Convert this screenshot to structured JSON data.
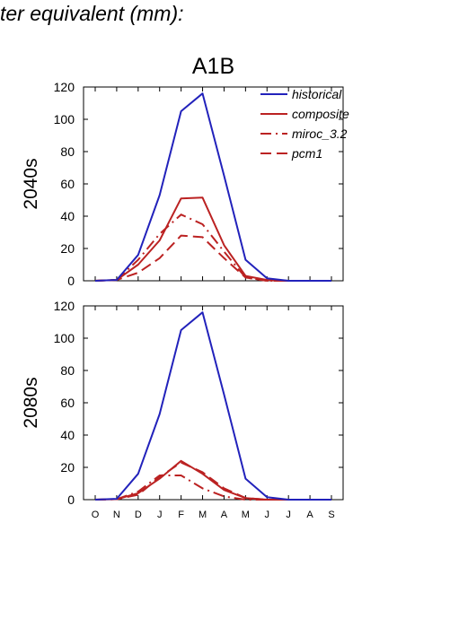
{
  "page": {
    "title": "ter equivalent (mm):"
  },
  "chart_data": [
    {
      "type": "line",
      "title": "A1B",
      "row_label": "2040s",
      "categories": [
        "O",
        "N",
        "D",
        "J",
        "F",
        "M",
        "A",
        "M",
        "J",
        "J",
        "A",
        "S"
      ],
      "ylim": [
        0,
        120
      ],
      "yticks": [
        0,
        20,
        40,
        60,
        80,
        100,
        120
      ],
      "show_xtick_labels": false,
      "legend_position": "top-right",
      "grid": false,
      "series": [
        {
          "name": "historical",
          "color": "#2222bb",
          "dash": "solid",
          "values": [
            0,
            0.5,
            16,
            53,
            105,
            116,
            65,
            13,
            1.5,
            0,
            0,
            0
          ]
        },
        {
          "name": "composite",
          "color": "#bb2222",
          "dash": "solid",
          "values": [
            0,
            0.5,
            10,
            25,
            51,
            51.5,
            22,
            3,
            0.5,
            0,
            0,
            0
          ]
        },
        {
          "name": "miroc_3.2",
          "color": "#bb2222",
          "dash": "dashdot",
          "values": [
            0,
            0.5,
            13,
            29,
            41,
            35,
            18,
            2,
            0,
            0,
            0,
            0
          ]
        },
        {
          "name": "pcm1",
          "color": "#bb2222",
          "dash": "longdash",
          "values": [
            0,
            0.5,
            5,
            14,
            28,
            27,
            14,
            2,
            0,
            0,
            0,
            0
          ]
        }
      ]
    },
    {
      "type": "line",
      "title": "",
      "row_label": "2080s",
      "categories": [
        "O",
        "N",
        "D",
        "J",
        "F",
        "M",
        "A",
        "M",
        "J",
        "J",
        "A",
        "S"
      ],
      "ylim": [
        0,
        120
      ],
      "yticks": [
        0,
        20,
        40,
        60,
        80,
        100,
        120
      ],
      "show_xtick_labels": true,
      "grid": false,
      "series": [
        {
          "name": "historical",
          "color": "#2222bb",
          "dash": "solid",
          "values": [
            0,
            0.5,
            16,
            53,
            105,
            116,
            65,
            13,
            1.5,
            0,
            0,
            0
          ]
        },
        {
          "name": "composite",
          "color": "#bb2222",
          "dash": "solid",
          "values": [
            0,
            0.3,
            4,
            13,
            24,
            16,
            6,
            1,
            0,
            0,
            0,
            0
          ]
        },
        {
          "name": "miroc_3.2",
          "color": "#bb2222",
          "dash": "dashdot",
          "values": [
            0,
            0.3,
            5,
            15,
            15,
            7,
            2,
            0,
            0,
            0,
            0,
            0
          ]
        },
        {
          "name": "pcm1",
          "color": "#bb2222",
          "dash": "longdash",
          "values": [
            0,
            0.3,
            3,
            14,
            23,
            17,
            7,
            1,
            0,
            0,
            0,
            0
          ]
        }
      ]
    }
  ]
}
